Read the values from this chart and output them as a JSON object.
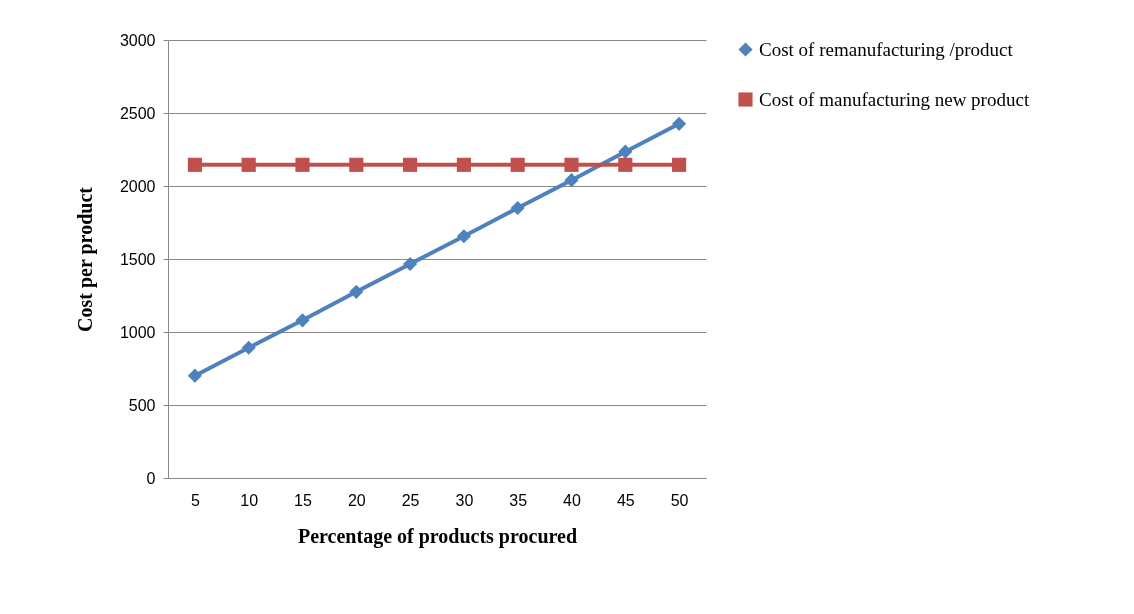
{
  "chart_data": {
    "type": "line",
    "xlabel": "Percentage of products procured",
    "ylabel": "Cost per product",
    "categories": [
      "5",
      "10",
      "15",
      "20",
      "25",
      "30",
      "35",
      "40",
      "45",
      "50"
    ],
    "series": [
      {
        "name": "Cost of remanufacturing /product",
        "color": "#4f81bd",
        "marker": "diamond",
        "values": [
          701,
          892,
          1080,
          1275,
          1466,
          1656,
          1849,
          2040,
          2235,
          2426
        ]
      },
      {
        "name": "Cost of manufacturing new product",
        "color": "#c0504d",
        "marker": "square",
        "values": [
          2145,
          2145,
          2145,
          2145,
          2145,
          2145,
          2145,
          2145,
          2145,
          2145
        ]
      }
    ],
    "ylim": [
      0,
      3000
    ],
    "yticks": [
      0,
      500,
      1000,
      1500,
      2000,
      2500,
      3000
    ],
    "grid": "y",
    "legend": "right",
    "line_style": "solid"
  }
}
